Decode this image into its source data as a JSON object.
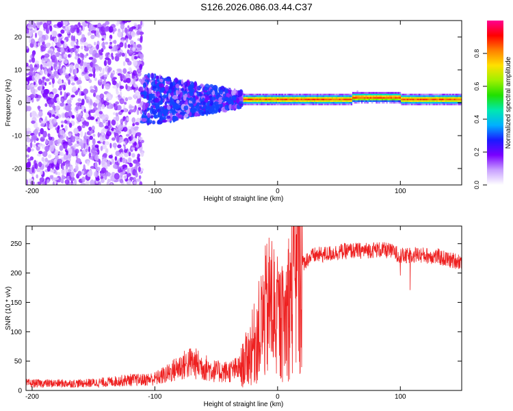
{
  "title": "S126.2026.086.03.44.C37",
  "colors": {
    "snr_line": "#ee2020",
    "frame": "#000000",
    "colorbar": [
      "#ffffff",
      "#c8a0ff",
      "#7a00ff",
      "#1a1aff",
      "#00b0ff",
      "#00e8b0",
      "#20e000",
      "#a0f000",
      "#ffe000",
      "#ff8000",
      "#ff0000",
      "#ff0090"
    ]
  },
  "chart_data": [
    {
      "type": "heatmap",
      "title": "",
      "xlabel": "Height of straight line (km)",
      "ylabel": "Frequency (Hz)",
      "xlim": [
        -205,
        150
      ],
      "ylim": [
        -25,
        25
      ],
      "xticks": [
        -200,
        -100,
        0,
        100
      ],
      "xtick_labels": [
        "-200",
        "-100",
        "0",
        "100"
      ],
      "yticks": [
        20,
        10,
        0,
        -10,
        -20
      ],
      "ytick_labels": [
        "20",
        "10",
        "0",
        "-10",
        "-20"
      ],
      "colorbar": {
        "label": "Normalized spectral amplitude",
        "range": [
          0,
          1
        ],
        "ticks": [
          0.0,
          0.2,
          0.4,
          0.6,
          0.8
        ],
        "tick_labels": [
          "0.0",
          "0.2",
          "0.4",
          "0.6",
          "0.8"
        ]
      },
      "regions": [
        {
          "x": [
            -205,
            -110
          ],
          "freq": [
            -25,
            25
          ],
          "amplitude": 0.1,
          "description": "scattered noise"
        },
        {
          "x": [
            -110,
            -28
          ],
          "freq": [
            -8,
            8
          ],
          "amplitude": 0.25,
          "description": "broadening signal"
        },
        {
          "x": [
            -28,
            150
          ],
          "freq": [
            0,
            2
          ],
          "amplitude": 0.85,
          "description": "narrow carrier near 1 Hz"
        }
      ]
    },
    {
      "type": "line",
      "title": "",
      "xlabel": "Height of straight line (km)",
      "ylabel": "SNR (10 * v/v)",
      "xlim": [
        -205,
        150
      ],
      "ylim": [
        0,
        280
      ],
      "xticks": [
        -200,
        -100,
        0,
        100
      ],
      "xtick_labels": [
        "-200",
        "-100",
        "0",
        "100"
      ],
      "yticks": [
        0,
        50,
        100,
        150,
        200,
        250
      ],
      "ytick_labels": [
        "0",
        "50",
        "100",
        "150",
        "200",
        "250"
      ],
      "series": [
        {
          "name": "SNR",
          "x": [
            -205,
            -180,
            -160,
            -140,
            -120,
            -110,
            -100,
            -90,
            -80,
            -70,
            -60,
            -50,
            -40,
            -30,
            -25,
            -20,
            -15,
            -10,
            -5,
            0,
            5,
            10,
            15,
            20,
            25,
            30,
            40,
            50,
            60,
            70,
            80,
            90,
            95,
            100,
            105,
            110,
            120,
            130,
            140,
            150
          ],
          "values": [
            12,
            12,
            12,
            14,
            18,
            18,
            20,
            28,
            40,
            48,
            40,
            32,
            32,
            38,
            55,
            75,
            100,
            130,
            150,
            120,
            110,
            160,
            190,
            215,
            225,
            230,
            232,
            236,
            238,
            238,
            240,
            238,
            235,
            230,
            228,
            232,
            230,
            228,
            222,
            220
          ]
        }
      ]
    }
  ]
}
